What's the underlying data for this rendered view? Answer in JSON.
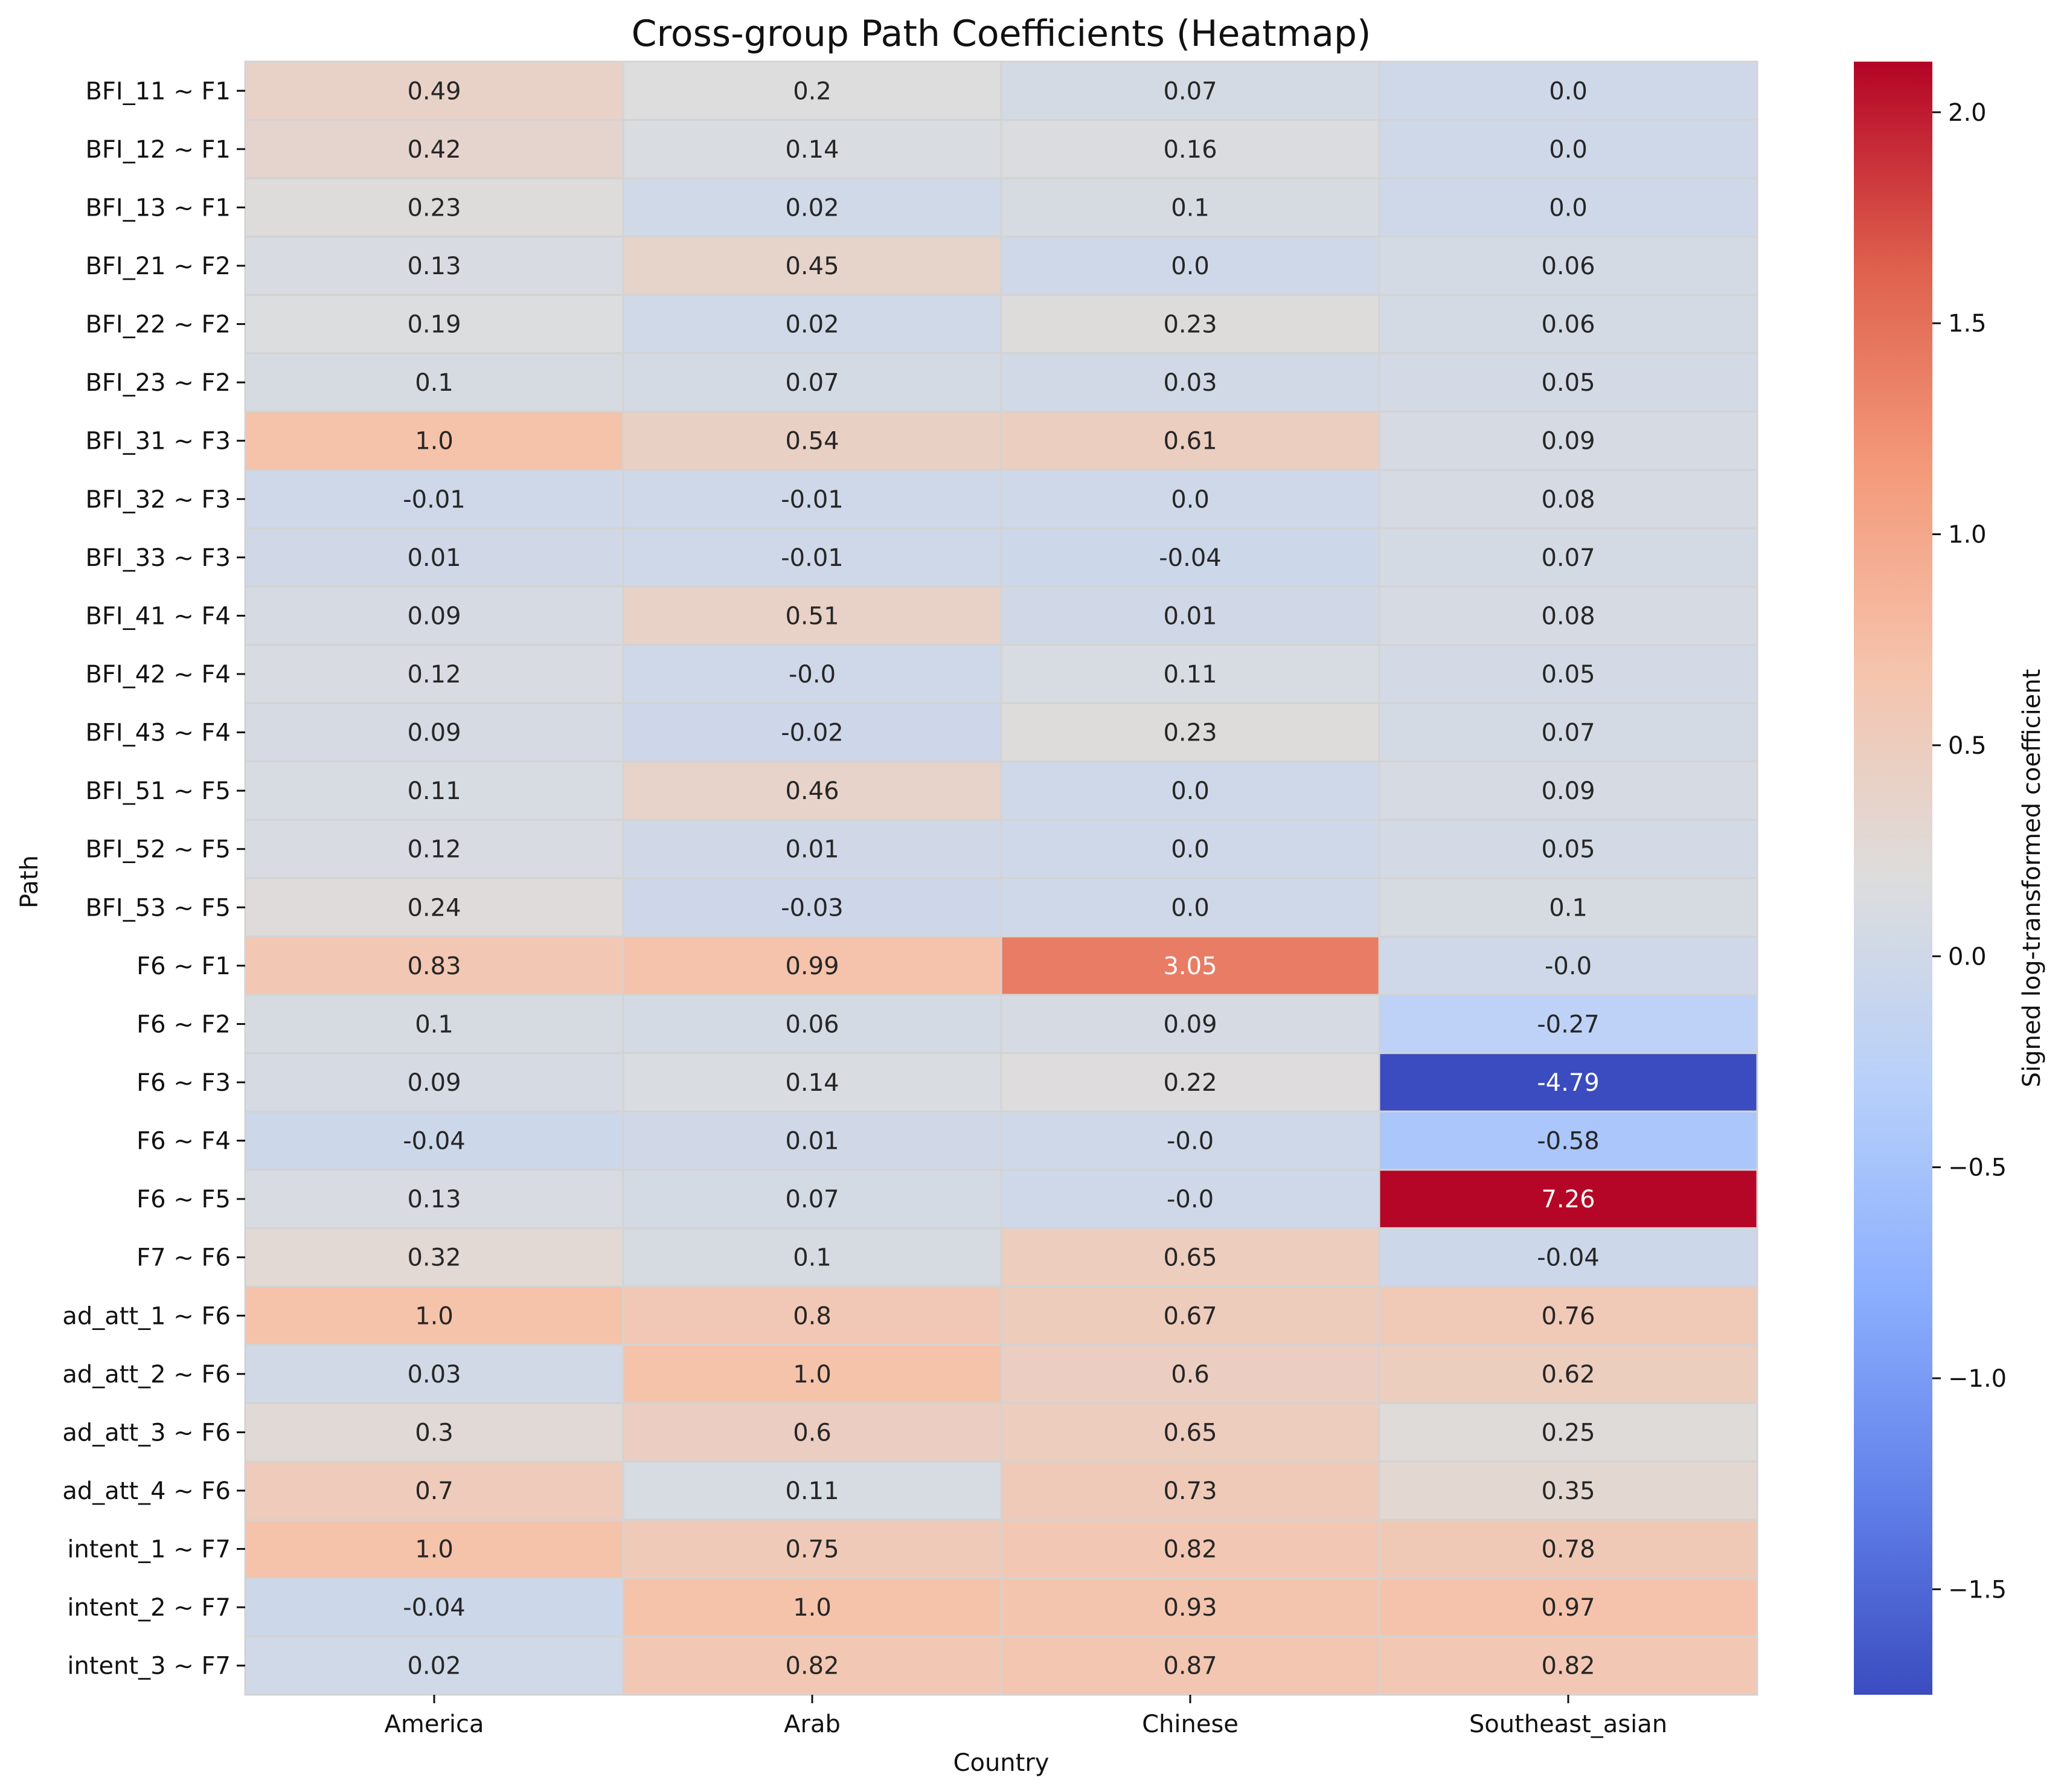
{
  "chart_data": {
    "type": "heatmap",
    "title": "Cross-group Path Coefficients (Heatmap)",
    "xlabel": "Country",
    "ylabel": "Path",
    "x_categories": [
      "America",
      "Arab",
      "Chinese",
      "Southeast_asian"
    ],
    "y_categories": [
      "BFI_11 ~ F1",
      "BFI_12 ~ F1",
      "BFI_13 ~ F1",
      "BFI_21 ~ F2",
      "BFI_22 ~ F2",
      "BFI_23 ~ F2",
      "BFI_31 ~ F3",
      "BFI_32 ~ F3",
      "BFI_33 ~ F3",
      "BFI_41 ~ F4",
      "BFI_42 ~ F4",
      "BFI_43 ~ F4",
      "BFI_51 ~ F5",
      "BFI_52 ~ F5",
      "BFI_53 ~ F5",
      "F6 ~ F1",
      "F6 ~ F2",
      "F6 ~ F3",
      "F6 ~ F4",
      "F6 ~ F5",
      "F7 ~ F6",
      "ad_att_1 ~ F6",
      "ad_att_2 ~ F6",
      "ad_att_3 ~ F6",
      "ad_att_4 ~ F6",
      "intent_1 ~ F7",
      "intent_2 ~ F7",
      "intent_3 ~ F7"
    ],
    "cell_labels": [
      [
        "0.49",
        "0.2",
        "0.07",
        "0.0"
      ],
      [
        "0.42",
        "0.14",
        "0.16",
        "0.0"
      ],
      [
        "0.23",
        "0.02",
        "0.1",
        "0.0"
      ],
      [
        "0.13",
        "0.45",
        "0.0",
        "0.06"
      ],
      [
        "0.19",
        "0.02",
        "0.23",
        "0.06"
      ],
      [
        "0.1",
        "0.07",
        "0.03",
        "0.05"
      ],
      [
        "1.0",
        "0.54",
        "0.61",
        "0.09"
      ],
      [
        "-0.01",
        "-0.01",
        "0.0",
        "0.08"
      ],
      [
        "0.01",
        "-0.01",
        "-0.04",
        "0.07"
      ],
      [
        "0.09",
        "0.51",
        "0.01",
        "0.08"
      ],
      [
        "0.12",
        "-0.0",
        "0.11",
        "0.05"
      ],
      [
        "0.09",
        "-0.02",
        "0.23",
        "0.07"
      ],
      [
        "0.11",
        "0.46",
        "0.0",
        "0.09"
      ],
      [
        "0.12",
        "0.01",
        "0.0",
        "0.05"
      ],
      [
        "0.24",
        "-0.03",
        "0.0",
        "0.1"
      ],
      [
        "0.83",
        "0.99",
        "3.05",
        "-0.0"
      ],
      [
        "0.1",
        "0.06",
        "0.09",
        "-0.27"
      ],
      [
        "0.09",
        "0.14",
        "0.22",
        "-4.79"
      ],
      [
        "-0.04",
        "0.01",
        "-0.0",
        "-0.58"
      ],
      [
        "0.13",
        "0.07",
        "-0.0",
        "7.26"
      ],
      [
        "0.32",
        "0.1",
        "0.65",
        "-0.04"
      ],
      [
        "1.0",
        "0.8",
        "0.67",
        "0.76"
      ],
      [
        "0.03",
        "1.0",
        "0.6",
        "0.62"
      ],
      [
        "0.3",
        "0.6",
        "0.65",
        "0.25"
      ],
      [
        "0.7",
        "0.11",
        "0.73",
        "0.35"
      ],
      [
        "1.0",
        "0.75",
        "0.82",
        "0.78"
      ],
      [
        "-0.04",
        "1.0",
        "0.93",
        "0.97"
      ],
      [
        "0.02",
        "0.82",
        "0.87",
        "0.82"
      ]
    ],
    "colorbar": {
      "label": "Signed log-transformed coefficient",
      "range": [
        -1.75,
        2.12
      ],
      "ticks": [
        -1.5,
        -1.0,
        -0.5,
        0.0,
        0.5,
        1.0,
        1.5,
        2.0
      ],
      "tick_labels": [
        "−1.5",
        "−1.0",
        "−0.5",
        "0.0",
        "0.5",
        "1.0",
        "1.5",
        "2.0"
      ],
      "colormap": "coolwarm",
      "transform": "sign(x)*ln(1+|x|)"
    }
  }
}
